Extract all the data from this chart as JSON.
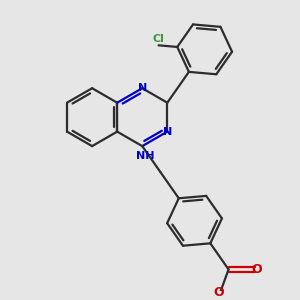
{
  "background_color": "#e6e6e6",
  "bond_color": "#2d2d2d",
  "nitrogen_color": "#0000cc",
  "oxygen_color": "#cc0000",
  "chlorine_color": "#3a9a3a",
  "bond_width": 1.6,
  "figsize": [
    3.0,
    3.0
  ],
  "dpi": 100,
  "xlim": [
    0,
    10
  ],
  "ylim": [
    0,
    10
  ]
}
